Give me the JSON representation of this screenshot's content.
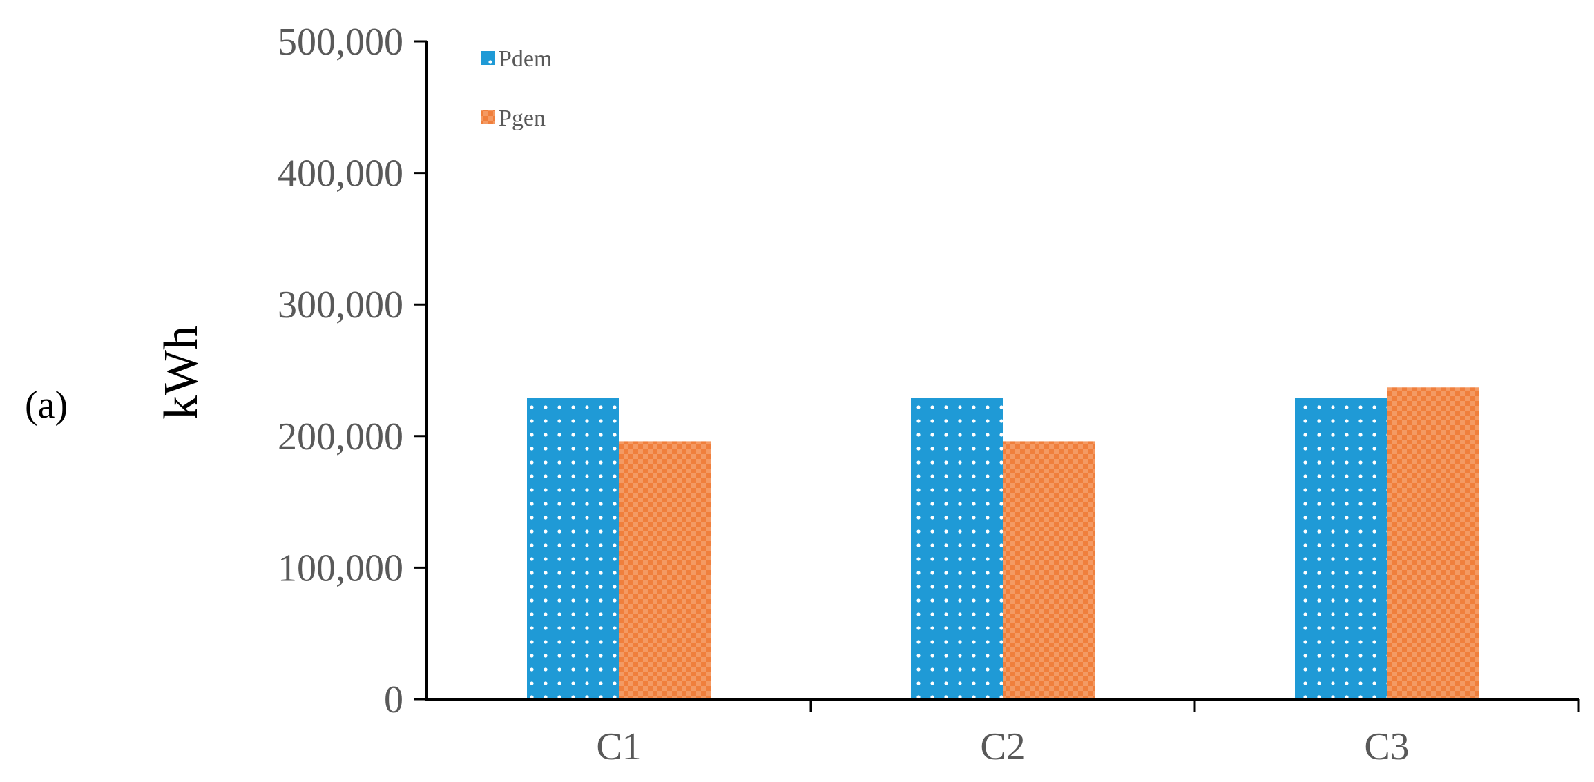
{
  "panel_label": "(a)",
  "chart_data": {
    "type": "bar",
    "title": "",
    "xlabel": "",
    "ylabel": "kWh",
    "ylim": [
      0,
      500000
    ],
    "yticks": [
      "0",
      "100,000",
      "200,000",
      "300,000",
      "400,000",
      "500,000"
    ],
    "categories": [
      "C1",
      "C2",
      "C3"
    ],
    "series": [
      {
        "name": "Pdem",
        "color": "#1f9ad6",
        "pattern": "dotted",
        "values": [
          229000,
          229000,
          229000
        ]
      },
      {
        "name": "Pgen",
        "color": "#f07f3c",
        "pattern": "checkered",
        "values": [
          196000,
          196000,
          237000
        ]
      }
    ],
    "legend_position": "top-left",
    "grid": false
  }
}
